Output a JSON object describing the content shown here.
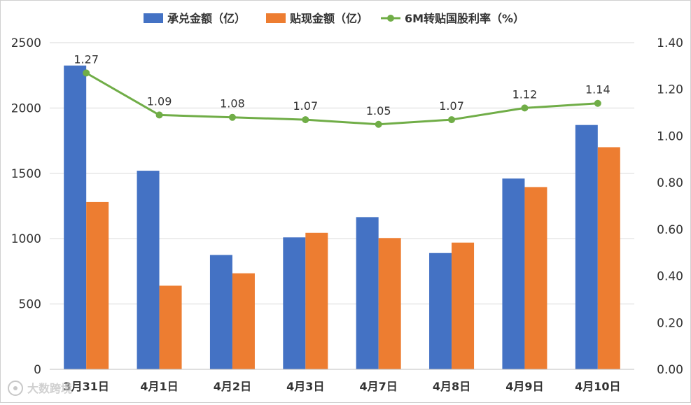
{
  "chart_data": {
    "type": "bar",
    "categories": [
      "3月31日",
      "4月1日",
      "4月2日",
      "4月3日",
      "4月7日",
      "4月8日",
      "4月9日",
      "4月10日"
    ],
    "series": [
      {
        "name": "承兑金额（亿）",
        "type": "bar",
        "axis": "left",
        "color": "#4472C4",
        "values": [
          2325,
          1520,
          875,
          1010,
          1165,
          890,
          1460,
          1870
        ]
      },
      {
        "name": "贴现金额（亿）",
        "type": "bar",
        "axis": "left",
        "color": "#ED7D31",
        "values": [
          1280,
          640,
          735,
          1045,
          1005,
          970,
          1395,
          1700
        ]
      },
      {
        "name": "6M转贴国股利率（%）",
        "type": "line",
        "axis": "right",
        "color": "#70AD47",
        "values": [
          1.27,
          1.09,
          1.08,
          1.07,
          1.05,
          1.07,
          1.12,
          1.14
        ],
        "labels": [
          "1.27",
          "1.09",
          "1.08",
          "1.07",
          "1.05",
          "1.07",
          "1.12",
          "1.14"
        ]
      }
    ],
    "y_left": {
      "range": [
        0,
        2500
      ],
      "ticks": [
        "0",
        "500",
        "1000",
        "1500",
        "2000",
        "2500"
      ]
    },
    "y_right": {
      "range": [
        0,
        1.4
      ],
      "ticks": [
        "0.00",
        "0.20",
        "0.40",
        "0.60",
        "0.80",
        "1.00",
        "1.20",
        "1.40"
      ]
    },
    "grid": true,
    "legend_position": "top-center"
  },
  "watermark": {
    "text": "大数跨境"
  }
}
